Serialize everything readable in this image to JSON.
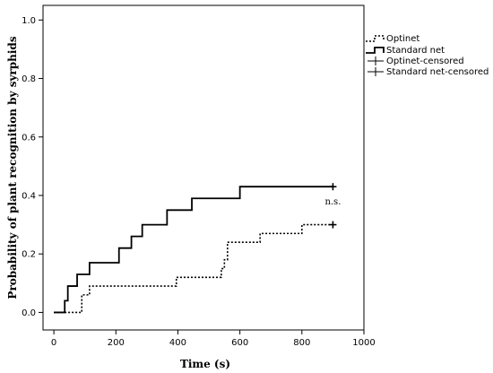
{
  "chart_data": {
    "type": "line",
    "xlabel": "Time (s)",
    "ylabel": "Probability of plant recognition by syrphids",
    "xlim": [
      -35,
      1000
    ],
    "ylim": [
      -0.06,
      1.05
    ],
    "xticks": [
      0,
      200,
      400,
      600,
      800,
      1000
    ],
    "yticks": [
      0.0,
      0.2,
      0.4,
      0.6,
      0.8,
      1.0
    ],
    "ytick_labels": [
      "0.0",
      "0.2",
      "0.4",
      "0.6",
      "0.8",
      "1.0"
    ],
    "grid": false,
    "legend_position": "right-outside-top",
    "annotation": "n.s.",
    "annotation_at": [
      900,
      0.37
    ],
    "series": [
      {
        "name": "Optinet",
        "style": "dotted-step",
        "color": "#000000",
        "x": [
          0,
          70,
          90,
          115,
          300,
          395,
          540,
          550,
          560,
          665,
          800,
          900
        ],
        "y": [
          0.0,
          0.0,
          0.06,
          0.09,
          0.09,
          0.12,
          0.15,
          0.18,
          0.24,
          0.27,
          0.3,
          0.3
        ]
      },
      {
        "name": "Standard net",
        "style": "solid-step",
        "color": "#000000",
        "x": [
          0,
          35,
          45,
          75,
          115,
          210,
          250,
          285,
          365,
          445,
          600,
          900
        ],
        "y": [
          0.0,
          0.04,
          0.09,
          0.13,
          0.17,
          0.22,
          0.26,
          0.3,
          0.35,
          0.39,
          0.43,
          0.43
        ]
      }
    ],
    "censored": [
      {
        "name": "Optinet-censored",
        "x": 900,
        "y": 0.3
      },
      {
        "name": "Standard net-censored",
        "x": 900,
        "y": 0.43
      }
    ]
  }
}
